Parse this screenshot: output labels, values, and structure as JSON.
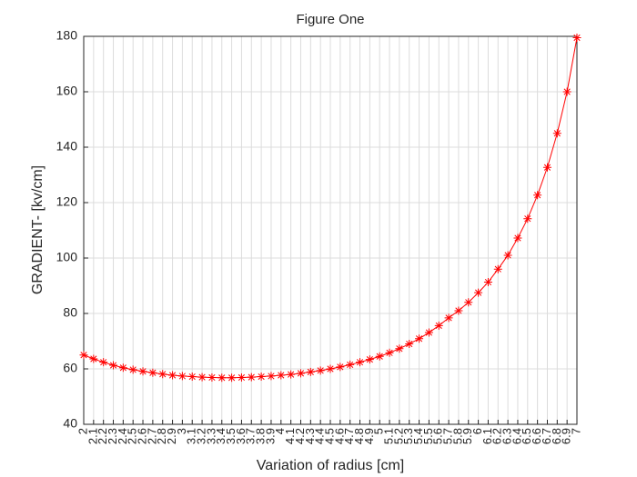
{
  "chart_data": {
    "type": "line",
    "title": "Figure One",
    "x_label": "Variation of radius [cm]",
    "y_label": "GRADIENT- [kv/cm]",
    "x": [
      2,
      2.1,
      2.2,
      2.3,
      2.4,
      2.5,
      2.6,
      2.7,
      2.8,
      2.9,
      3,
      3.1,
      3.2,
      3.3,
      3.4,
      3.5,
      3.6,
      3.7,
      3.8,
      3.9,
      4,
      4.1,
      4.2,
      4.3,
      4.4,
      4.5,
      4.6,
      4.7,
      4.8,
      4.9,
      5,
      5.1,
      5.2,
      5.3,
      5.4,
      5.5,
      5.6,
      5.7,
      5.8,
      5.9,
      6,
      6.1,
      6.2,
      6.3,
      6.4,
      6.5,
      6.6,
      6.7,
      6.8,
      6.9,
      7
    ],
    "values": [
      65,
      63.6,
      62.4,
      61.3,
      60.4,
      59.7,
      59.1,
      58.6,
      58.1,
      57.7,
      57.4,
      57.2,
      57.0,
      56.9,
      56.8,
      56.8,
      56.9,
      57.0,
      57.2,
      57.4,
      57.7,
      58.0,
      58.4,
      58.9,
      59.4,
      60.0,
      60.7,
      61.5,
      62.4,
      63.4,
      64.5,
      65.8,
      67.3,
      69.0,
      70.9,
      73.1,
      75.6,
      78.4,
      81.0,
      84.0,
      87.5,
      91.3,
      96,
      101,
      107.2,
      114.2,
      122.7,
      132.7,
      145,
      160,
      179.5
    ],
    "color": "#ff0000",
    "marker": "asterisk",
    "xlim": [
      2,
      7
    ],
    "xticks": [
      2,
      2.1,
      2.2,
      2.3,
      2.4,
      2.5,
      2.6,
      2.7,
      2.8,
      2.9,
      3,
      3.1,
      3.2,
      3.3,
      3.4,
      3.5,
      3.6,
      3.7,
      3.8,
      3.9,
      4,
      4.1,
      4.2,
      4.3,
      4.4,
      4.5,
      4.6,
      4.7,
      4.8,
      4.9,
      5,
      5.1,
      5.2,
      5.3,
      5.4,
      5.5,
      5.6,
      5.7,
      5.8,
      5.9,
      6,
      6.1,
      6.2,
      6.3,
      6.4,
      6.5,
      6.6,
      6.7,
      6.8,
      6.9,
      7
    ],
    "ylim": [
      40,
      180
    ],
    "yticks": [
      40,
      60,
      80,
      100,
      120,
      140,
      160,
      180
    ],
    "grid": true
  }
}
